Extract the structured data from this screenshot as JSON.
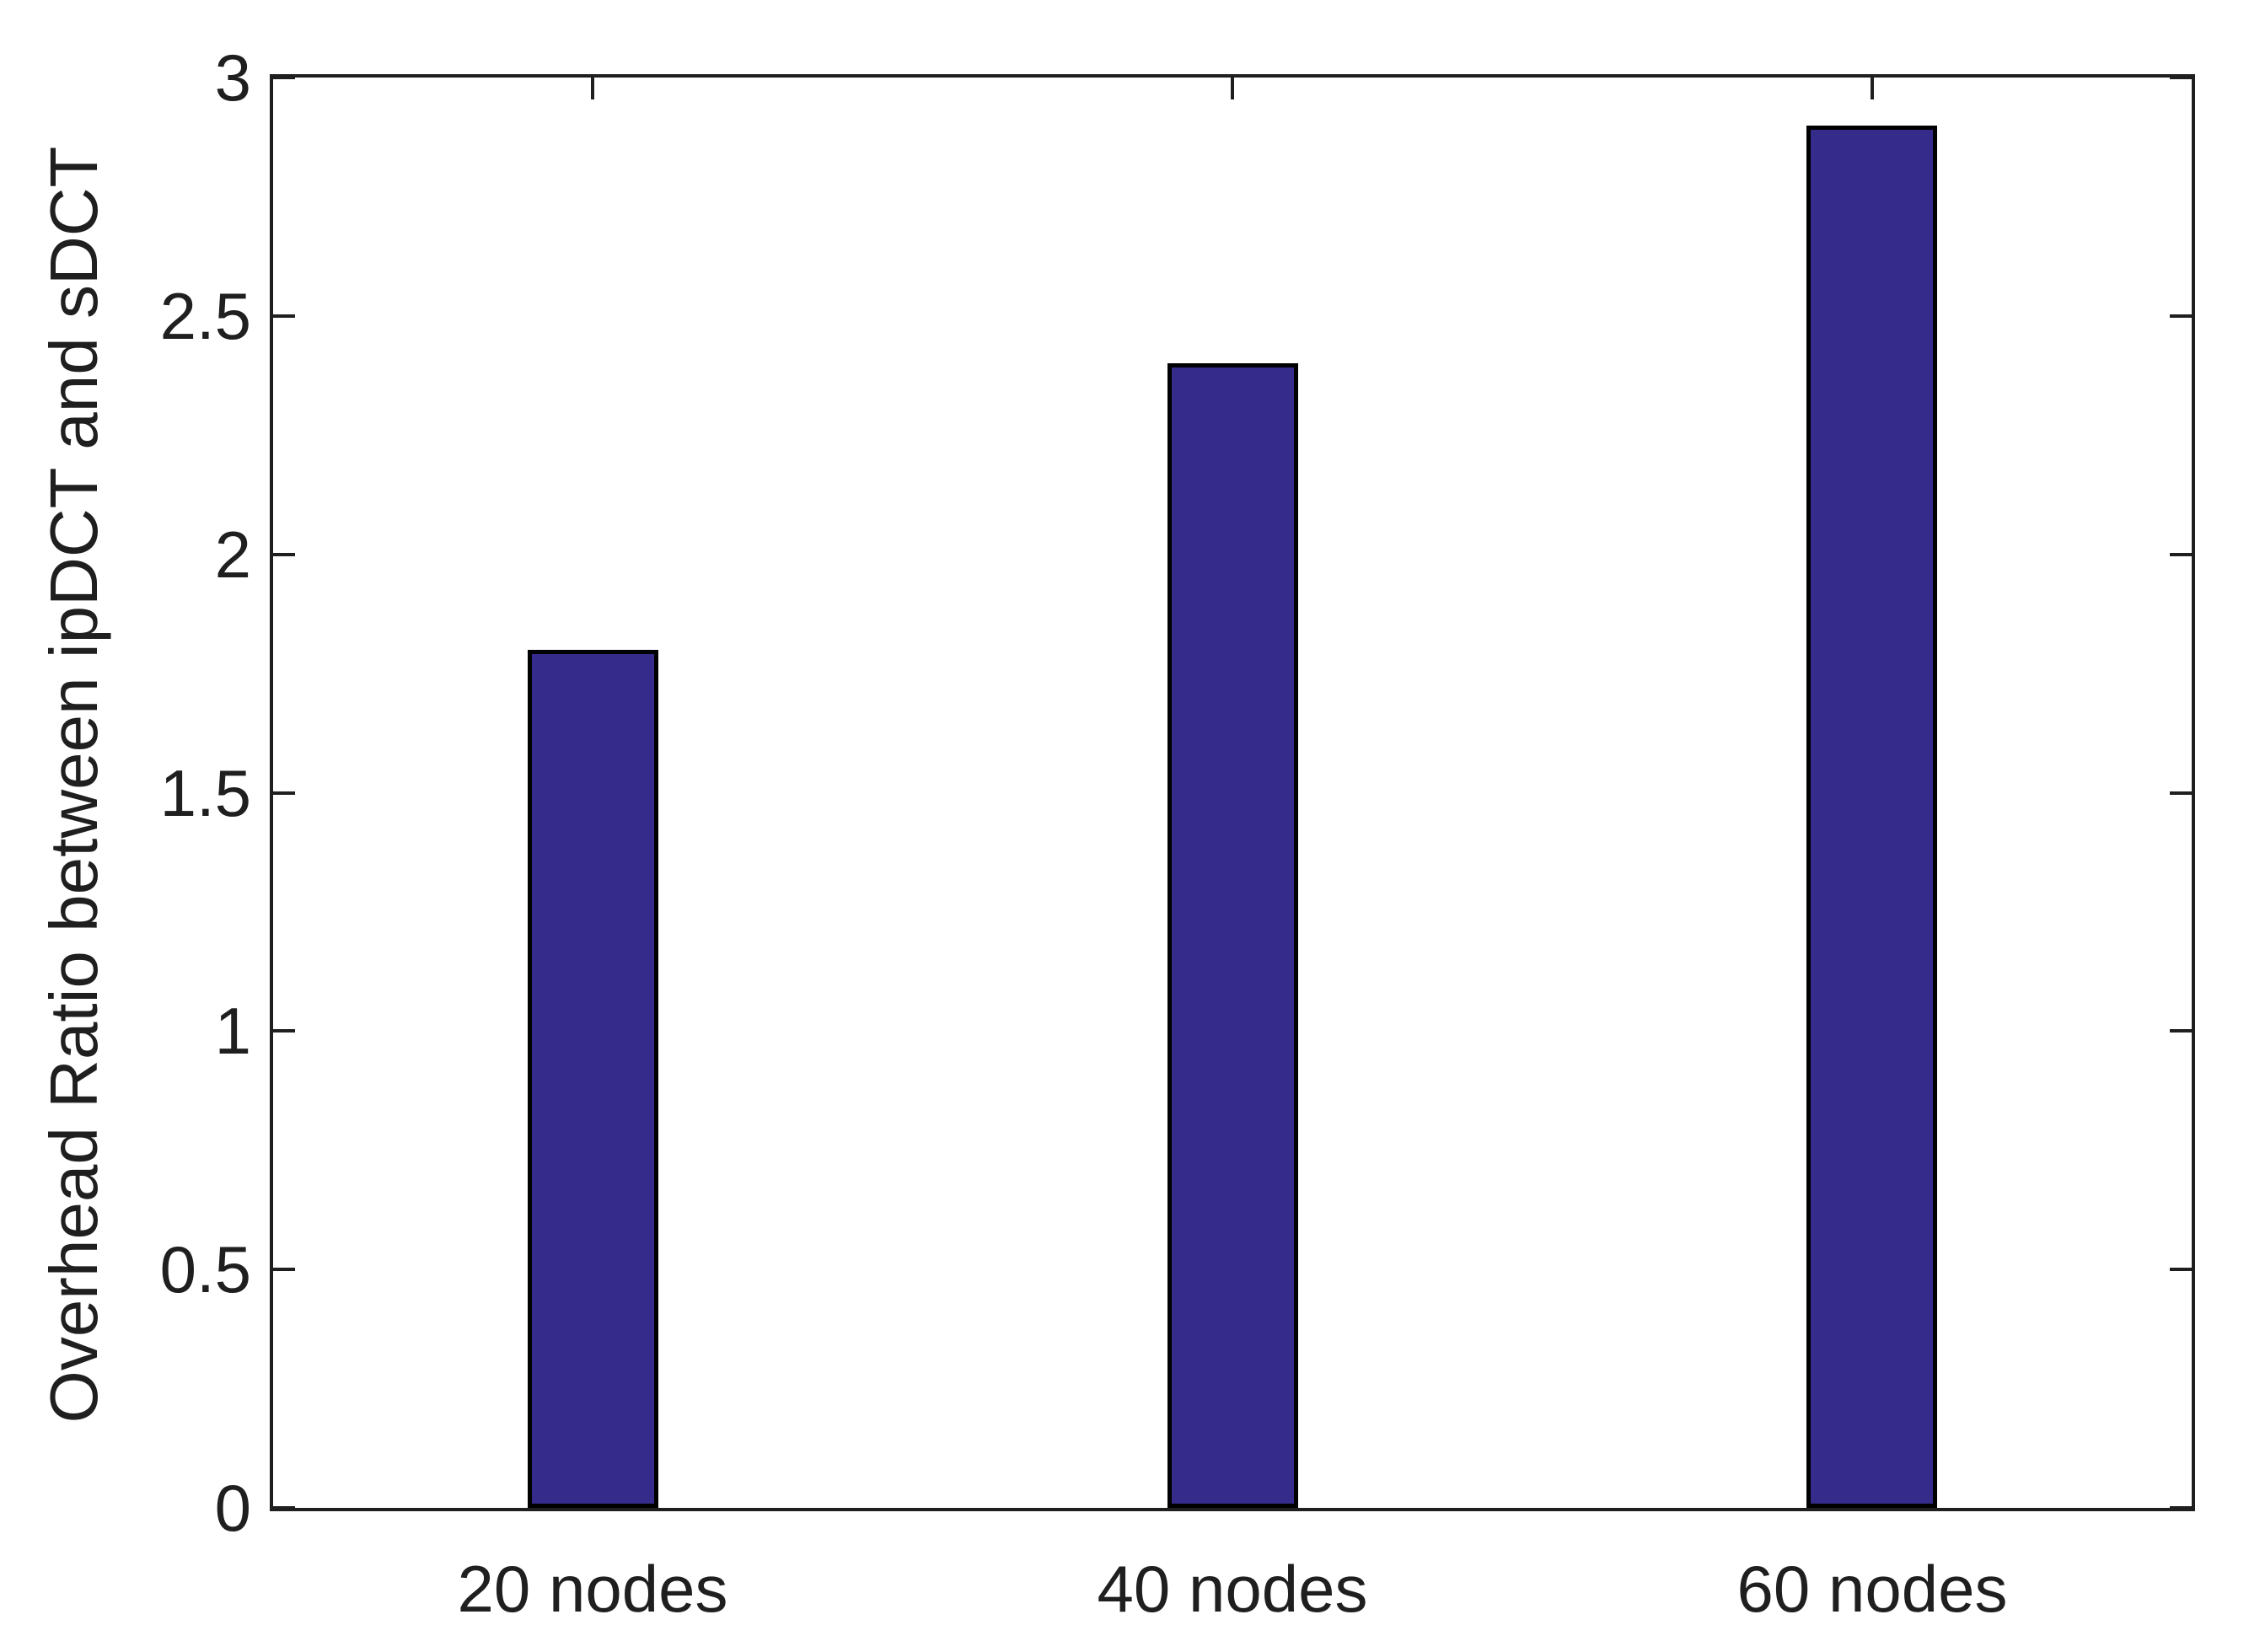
{
  "figure": {
    "background": "#ffffff"
  },
  "colors": {
    "bar_fill": "#352b8a",
    "bar_edge": "#000000",
    "axis_line": "#1f1f1f",
    "text": "#1f1f1f"
  },
  "y_axis": {
    "label": "Overhead Ratio between ipDCT and sDCT",
    "tick_labels": [
      "0",
      "0.5",
      "1",
      "1.5",
      "2",
      "2.5",
      "3"
    ],
    "tick_values": [
      0,
      0.5,
      1,
      1.5,
      2,
      2.5,
      3
    ],
    "min": 0,
    "max": 3
  },
  "x_axis": {
    "tick_labels": [
      "20 nodes",
      "40 nodes",
      "60 nodes"
    ]
  },
  "chart_data": {
    "type": "bar",
    "categories": [
      "20 nodes",
      "40 nodes",
      "60 nodes"
    ],
    "values": [
      1.8,
      2.4,
      2.9
    ],
    "title": "",
    "xlabel": "",
    "ylabel": "Overhead Ratio between ipDCT and sDCT",
    "ylim": [
      0,
      3
    ],
    "ytick_interval": 0.5,
    "grid": false,
    "legend": null,
    "bar_color": "#352b8a",
    "bar_edge_color": "#000000"
  }
}
